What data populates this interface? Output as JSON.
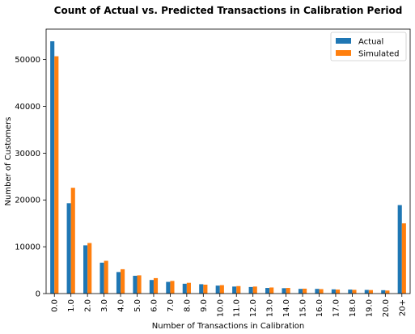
{
  "chart_data": {
    "type": "bar",
    "title": "Count of Actual vs. Predicted Transactions in Calibration Period",
    "xlabel": "Number of Transactions in Calibration",
    "ylabel": "Number of Customers",
    "categories": [
      "0.0",
      "1.0",
      "2.0",
      "3.0",
      "4.0",
      "5.0",
      "6.0",
      "7.0",
      "8.0",
      "9.0",
      "10.0",
      "11.0",
      "12.0",
      "13.0",
      "14.0",
      "15.0",
      "16.0",
      "17.0",
      "18.0",
      "19.0",
      "20.0",
      "20+"
    ],
    "series": [
      {
        "name": "Actual",
        "color": "#1f77b4",
        "values": [
          53900,
          19300,
          10300,
          6600,
          4600,
          3800,
          2900,
          2500,
          2100,
          2000,
          1700,
          1500,
          1400,
          1200,
          1150,
          1000,
          1000,
          900,
          850,
          780,
          720,
          18900
        ]
      },
      {
        "name": "Simulated",
        "color": "#ff7f0e",
        "values": [
          50700,
          22600,
          10800,
          7000,
          5200,
          3900,
          3300,
          2700,
          2300,
          1900,
          1800,
          1600,
          1500,
          1300,
          1200,
          1050,
          950,
          850,
          800,
          750,
          650,
          15000
        ]
      }
    ],
    "ylim": [
      0,
      56500
    ],
    "yticks": [
      0,
      10000,
      20000,
      30000,
      40000,
      50000
    ],
    "grid": false,
    "legend_position": "top-right"
  }
}
